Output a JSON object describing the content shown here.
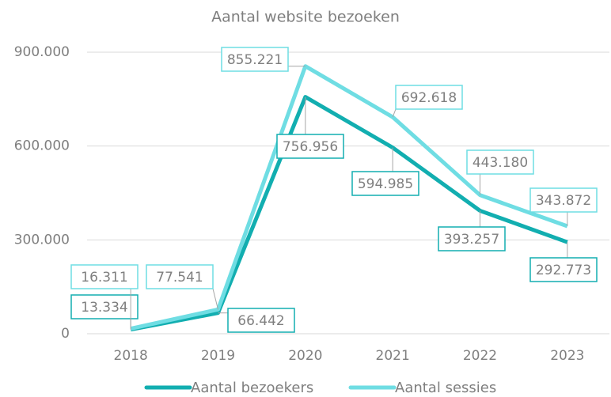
{
  "chart_data": {
    "type": "line",
    "title": "Aantal website bezoeken",
    "categories": [
      "2018",
      "2019",
      "2020",
      "2021",
      "2022",
      "2023"
    ],
    "series": [
      {
        "name": "Aantal bezoekers",
        "color": "#12aeb0",
        "values": [
          13334,
          66442,
          756956,
          594985,
          393257,
          292773
        ],
        "value_labels": [
          "13.334",
          "66.442",
          "756.956",
          "594.985",
          "393.257",
          "292.773"
        ]
      },
      {
        "name": "Aantal sessies",
        "color": "#6fdde3",
        "values": [
          16311,
          77541,
          855221,
          692618,
          443180,
          343872
        ],
        "value_labels": [
          "16.311",
          "77.541",
          "855.221",
          "692.618",
          "443.180",
          "343.872"
        ]
      }
    ],
    "ylim": [
      0,
      900000
    ],
    "yticks": [
      0,
      {
        "value": 300000,
        "label": "300.000"
      },
      {
        "value": 600000,
        "label": "600.000"
      },
      {
        "value": 900000,
        "label": "900.000"
      }
    ],
    "grid": true,
    "legend": "bottom"
  }
}
